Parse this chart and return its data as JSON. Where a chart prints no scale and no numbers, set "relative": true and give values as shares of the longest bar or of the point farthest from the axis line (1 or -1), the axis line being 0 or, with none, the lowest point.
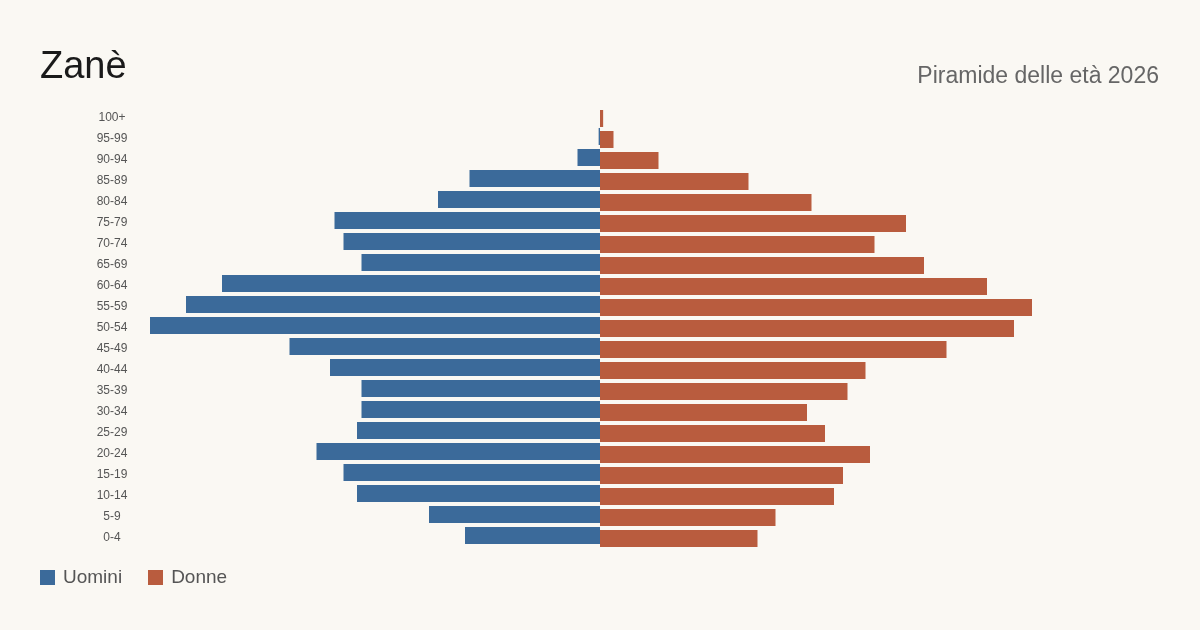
{
  "chart_data": {
    "type": "bar",
    "orientation": "horizontal",
    "relative": true,
    "title": "Zanè",
    "subtitle": "Piramide delle età 2026",
    "legend": "bottom left",
    "categories": [
      "100+",
      "95-99",
      "90-94",
      "85-89",
      "80-84",
      "75-79",
      "70-74",
      "65-69",
      "60-64",
      "55-59",
      "50-54",
      "45-49",
      "40-44",
      "35-39",
      "30-34",
      "25-29",
      "20-24",
      "15-19",
      "10-14",
      "5-9",
      "0-4"
    ],
    "series": [
      {
        "name": "Uomini",
        "color": "#3b6a9a",
        "values": [
          0,
          -0.003,
          -0.05,
          -0.29,
          -0.36,
          -0.59,
          -0.57,
          -0.53,
          -0.84,
          -0.92,
          -1,
          -0.69,
          -0.6,
          -0.53,
          -0.53,
          -0.54,
          -0.63,
          -0.57,
          -0.54,
          -0.38,
          -0.3
        ]
      },
      {
        "name": "Donne",
        "color": "#b95c3e",
        "values": [
          0.007,
          0.03,
          0.13,
          0.33,
          0.47,
          0.68,
          0.61,
          0.72,
          0.86,
          0.96,
          0.92,
          0.77,
          0.59,
          0.55,
          0.46,
          0.5,
          0.6,
          0.54,
          0.52,
          0.39,
          0.35
        ]
      }
    ]
  }
}
